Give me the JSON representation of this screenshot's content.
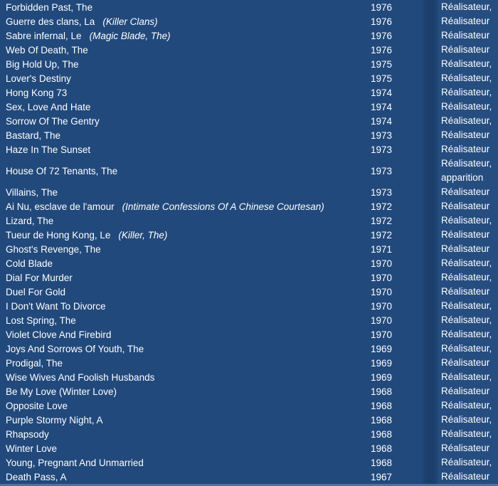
{
  "colors": {
    "background": "#21497C",
    "text": "#FFFFFF",
    "bottom_border": "#4C729D"
  },
  "filmography": {
    "rows": [
      {
        "title": "Forbidden Past, The",
        "alt_title": "",
        "year": "1976",
        "role": "Réalisateur,",
        "role_line2": ""
      },
      {
        "title": "Guerre des clans, La",
        "alt_title": "(Killer Clans)",
        "year": "1976",
        "role": "Réalisateur",
        "role_line2": ""
      },
      {
        "title": "Sabre infernal, Le",
        "alt_title": "(Magic Blade, The)",
        "year": "1976",
        "role": "Réalisateur",
        "role_line2": ""
      },
      {
        "title": "Web Of Death, The",
        "alt_title": "",
        "year": "1976",
        "role": "Réalisateur",
        "role_line2": ""
      },
      {
        "title": "Big Hold Up, The",
        "alt_title": "",
        "year": "1975",
        "role": "Réalisateur,",
        "role_line2": ""
      },
      {
        "title": "Lover's Destiny",
        "alt_title": "",
        "year": "1975",
        "role": "Réalisateur,",
        "role_line2": ""
      },
      {
        "title": "Hong Kong 73",
        "alt_title": "",
        "year": "1974",
        "role": "Réalisateur,",
        "role_line2": ""
      },
      {
        "title": "Sex, Love And Hate",
        "alt_title": "",
        "year": "1974",
        "role": "Réalisateur,",
        "role_line2": ""
      },
      {
        "title": "Sorrow Of The Gentry",
        "alt_title": "",
        "year": "1974",
        "role": "Réalisateur,",
        "role_line2": ""
      },
      {
        "title": "Bastard, The",
        "alt_title": "",
        "year": "1973",
        "role": "Réalisateur",
        "role_line2": ""
      },
      {
        "title": "Haze In The Sunset",
        "alt_title": "",
        "year": "1973",
        "role": "Réalisateur",
        "role_line2": ""
      },
      {
        "title": "House Of 72 Tenants, The",
        "alt_title": "",
        "year": "1973",
        "role": "Réalisateur,",
        "role_line2": "apparition"
      },
      {
        "title": "Villains, The",
        "alt_title": "",
        "year": "1973",
        "role": "Réalisateur",
        "role_line2": ""
      },
      {
        "title": "Ai Nu, esclave de l'amour",
        "alt_title": "(Intimate Confessions Of A Chinese Courtesan)",
        "year": "1972",
        "role": "Réalisateur",
        "role_line2": ""
      },
      {
        "title": "Lizard, The",
        "alt_title": "",
        "year": "1972",
        "role": "Réalisateur,",
        "role_line2": ""
      },
      {
        "title": "Tueur de Hong Kong, Le",
        "alt_title": "(Killer, The)",
        "year": "1972",
        "role": "Réalisateur",
        "role_line2": ""
      },
      {
        "title": "Ghost's Revenge, The",
        "alt_title": "",
        "year": "1971",
        "role": "Réalisateur",
        "role_line2": ""
      },
      {
        "title": "Cold Blade",
        "alt_title": "",
        "year": "1970",
        "role": "Réalisateur,",
        "role_line2": ""
      },
      {
        "title": "Dial For Murder",
        "alt_title": "",
        "year": "1970",
        "role": "Réalisateur,",
        "role_line2": ""
      },
      {
        "title": "Duel For Gold",
        "alt_title": "",
        "year": "1970",
        "role": "Réalisateur",
        "role_line2": ""
      },
      {
        "title": "I Don't Want To Divorce",
        "alt_title": "",
        "year": "1970",
        "role": "Réalisateur,",
        "role_line2": ""
      },
      {
        "title": "Lost Spring, The",
        "alt_title": "",
        "year": "1970",
        "role": "Réalisateur,",
        "role_line2": ""
      },
      {
        "title": "Violet Clove And Firebird",
        "alt_title": "",
        "year": "1970",
        "role": "Réalisateur,",
        "role_line2": ""
      },
      {
        "title": "Joys And Sorrows Of Youth, The",
        "alt_title": "",
        "year": "1969",
        "role": "Réalisateur,",
        "role_line2": ""
      },
      {
        "title": "Prodigal, The",
        "alt_title": "",
        "year": "1969",
        "role": "Réalisateur",
        "role_line2": ""
      },
      {
        "title": "Wise Wives And Foolish Husbands",
        "alt_title": "",
        "year": "1969",
        "role": "Réalisateur,",
        "role_line2": ""
      },
      {
        "title": "Be My Love (Winter Love)",
        "alt_title": "",
        "year": "1968",
        "role": "Réalisateur",
        "role_line2": ""
      },
      {
        "title": "Opposite Love",
        "alt_title": "",
        "year": "1968",
        "role": "Réalisateur,",
        "role_line2": ""
      },
      {
        "title": "Purple Stormy Night, A",
        "alt_title": "",
        "year": "1968",
        "role": "Réalisateur,",
        "role_line2": ""
      },
      {
        "title": "Rhapsody",
        "alt_title": "",
        "year": "1968",
        "role": "Réalisateur,",
        "role_line2": ""
      },
      {
        "title": "Winter Love",
        "alt_title": "",
        "year": "1968",
        "role": "Réalisateur",
        "role_line2": ""
      },
      {
        "title": "Young, Pregnant And Unmarried",
        "alt_title": "",
        "year": "1968",
        "role": "Réalisateur,",
        "role_line2": ""
      },
      {
        "title": "Death Pass, A",
        "alt_title": "",
        "year": "1967",
        "role": "Réalisateur",
        "role_line2": ""
      }
    ]
  }
}
